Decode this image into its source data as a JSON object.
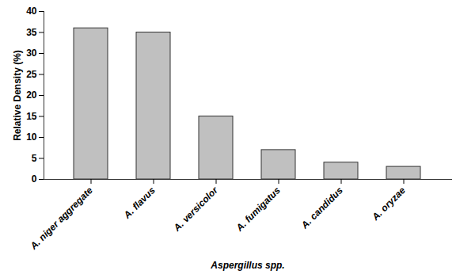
{
  "chart_data": {
    "type": "bar",
    "categories": [
      "A. niger aggregate",
      "A. flavus",
      "A. versicolor",
      "A. fumigatus",
      "A. candidus",
      "A. oryzae"
    ],
    "values": [
      36,
      35,
      15,
      7,
      4,
      3
    ],
    "color": "#c0c0c0",
    "xlabel": "Aspergillus spp.",
    "ylabel": "Relative Density (%)",
    "ylim": [
      0,
      40
    ],
    "yticks": [
      0,
      5,
      10,
      15,
      20,
      25,
      30,
      35,
      40
    ],
    "grid": false
  }
}
